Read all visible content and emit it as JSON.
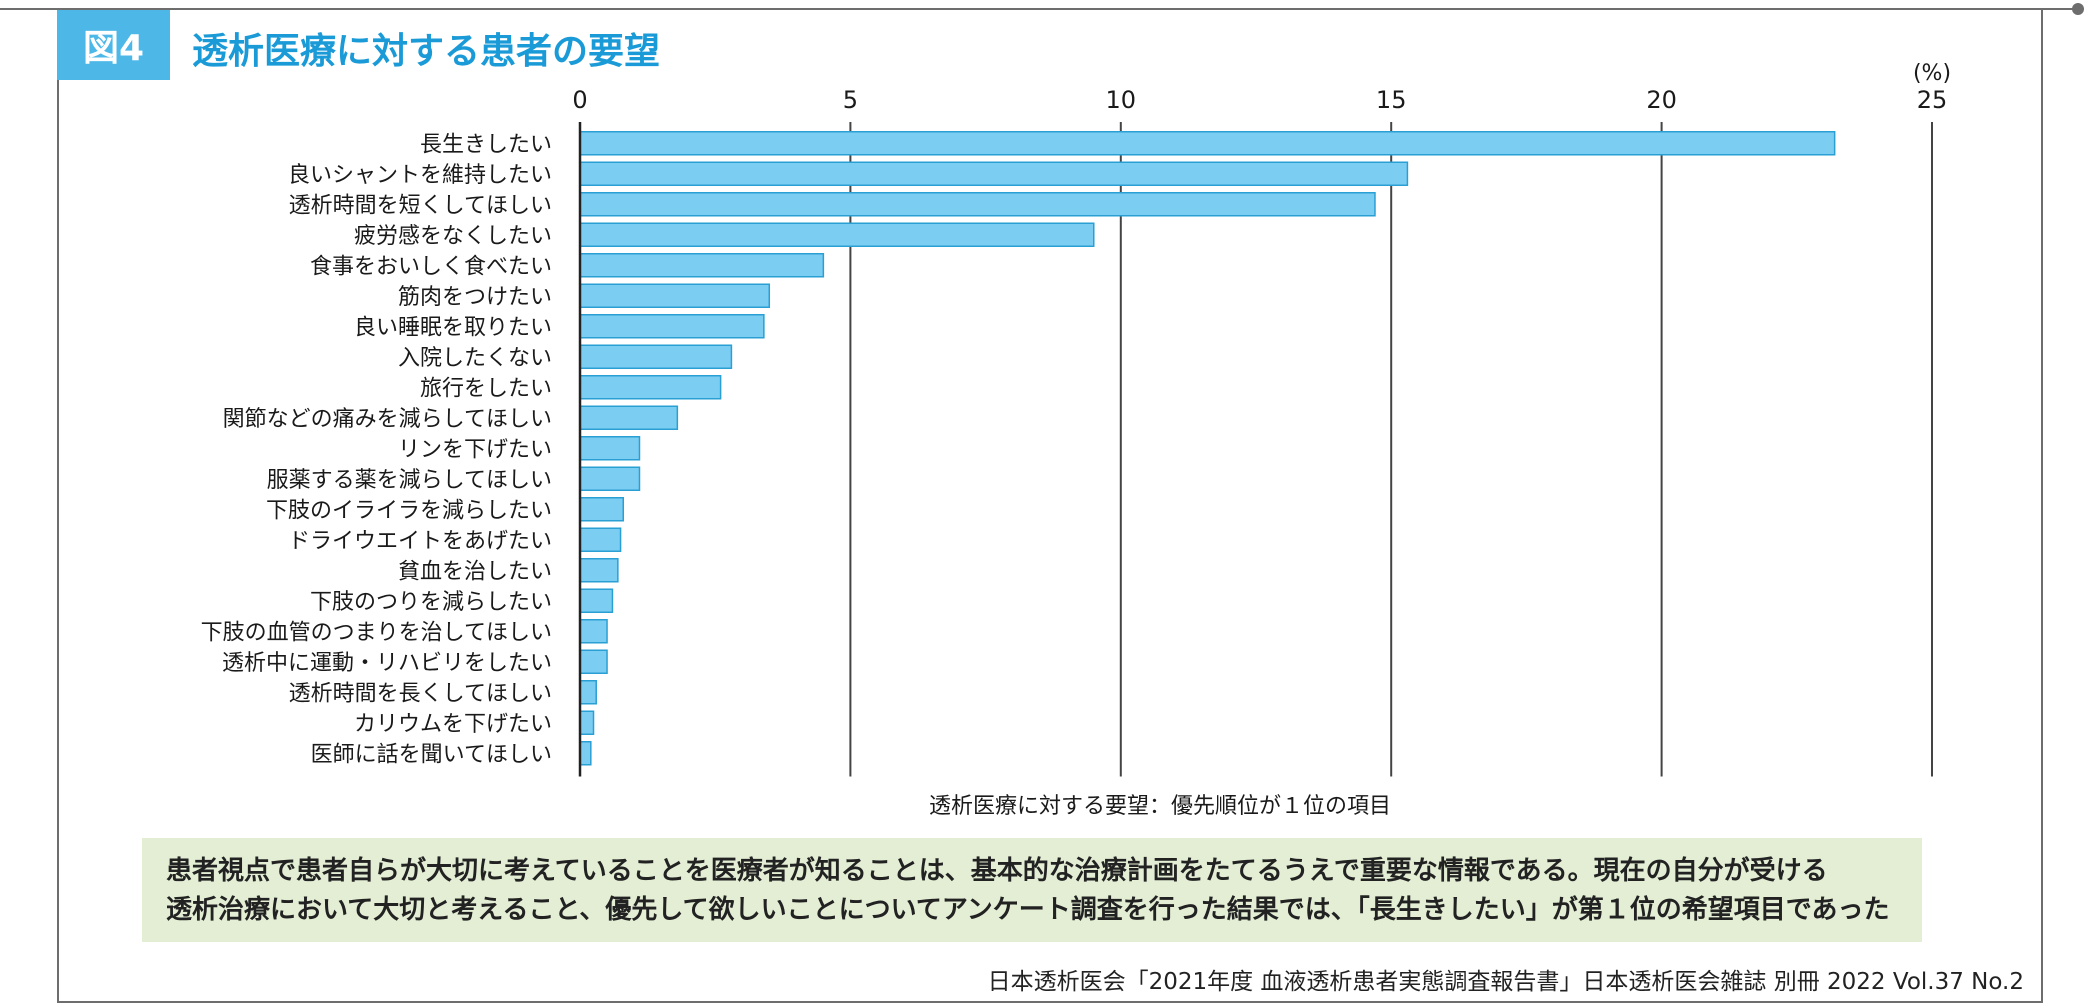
{
  "figure": {
    "badge": "図4",
    "title": "透析医療に対する患者の要望"
  },
  "chart_data": {
    "type": "bar",
    "orientation": "horizontal",
    "categories": [
      "長生きしたい",
      "良いシャントを維持したい",
      "透析時間を短くしてほしい",
      "疲労感をなくしたい",
      "食事をおいしく食べたい",
      "筋肉をつけたい",
      "良い睡眠を取りたい",
      "入院したくない",
      "旅行をしたい",
      "関節などの痛みを減らしてほしい",
      "リンを下げたい",
      "服薬する薬を減らしてほしい",
      "下肢のイライラを減らしたい",
      "ドライウエイトをあげたい",
      "貧血を治したい",
      "下肢のつりを減らしたい",
      "下肢の血管のつまりを治してほしい",
      "透析中に運動・リハビリをしたい",
      "透析時間を長くしてほしい",
      "カリウムを下げたい",
      "医師に話を聞いてほしい"
    ],
    "values": [
      23.2,
      15.3,
      14.7,
      9.5,
      4.5,
      3.5,
      3.4,
      2.8,
      2.6,
      1.8,
      1.1,
      1.1,
      0.8,
      0.75,
      0.7,
      0.6,
      0.5,
      0.5,
      0.3,
      0.25,
      0.2
    ],
    "xlim": [
      0,
      25
    ],
    "xticks": [
      "0",
      "5",
      "10",
      "15",
      "20",
      "25"
    ],
    "unit": "(%)",
    "xlabel": "透析医療に対する要望：優先順位が１位の項目",
    "grid": true,
    "bar_color": "#7ccdf2",
    "bar_edge_color": "#2a9fd4"
  },
  "note": {
    "line1": "患者視点で患者自らが大切に考えていることを医療者が知ることは、基本的な治療計画をたてるうえで重要な情報である。現在の自分が受ける",
    "line2": "透析治療において大切と考えること、優先して欲しいことについてアンケート調査を行った結果では、「長生きしたい」が第１位の希望項目であった"
  },
  "source": "日本透析医会「2021年度 血液透析患者実態調査報告書」日本透析医会雑誌 別冊 2022 Vol.37 No.2",
  "colors": {
    "accent": "#1a9ad6",
    "badge_bg": "#4db8e8",
    "note_bg": "#e3eed5",
    "frame": "#6d6d6d"
  }
}
